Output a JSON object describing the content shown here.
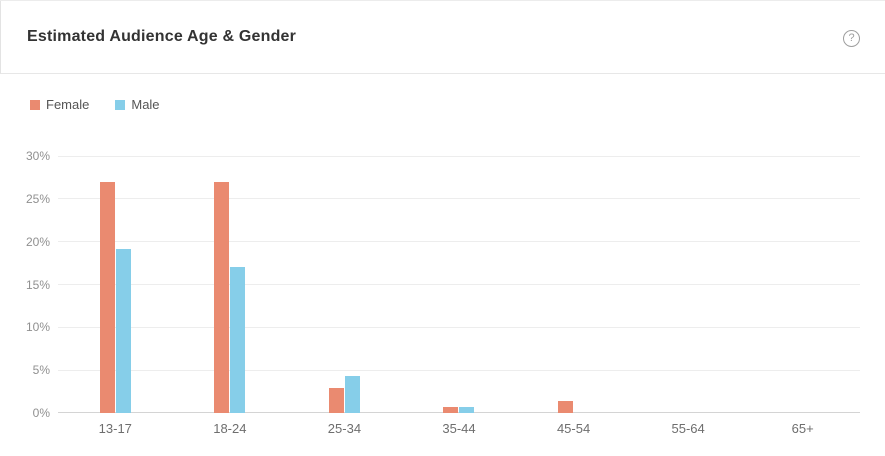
{
  "header": {
    "title": "Estimated Audience Age & Gender",
    "help_icon_glyph": "?"
  },
  "colors": {
    "female": "#ea8a70",
    "male": "#86cee9",
    "gridline": "#ededed",
    "axis_line": "#d4d4d4",
    "title_text": "#333333",
    "tick_text": "#909090",
    "category_text": "#6e6e6e"
  },
  "chart_data": {
    "type": "bar",
    "title": "Estimated Audience Age & Gender",
    "categories": [
      "13-17",
      "18-24",
      "25-34",
      "35-44",
      "45-54",
      "55-64",
      "65+"
    ],
    "series": [
      {
        "name": "Female",
        "color": "#ea8a70",
        "values": [
          27,
          27,
          2.9,
          0.7,
          1.4,
          0,
          0
        ]
      },
      {
        "name": "Male",
        "color": "#86cee9",
        "values": [
          19.2,
          17,
          4.3,
          0.7,
          0,
          0,
          0
        ]
      }
    ],
    "xlabel": "",
    "ylabel": "",
    "ylim": [
      0,
      30
    ],
    "y_tick_step": 5,
    "y_tick_labels": [
      "0%",
      "5%",
      "10%",
      "15%",
      "20%",
      "25%",
      "30%"
    ],
    "grid": true,
    "legend_position": "top-left"
  }
}
